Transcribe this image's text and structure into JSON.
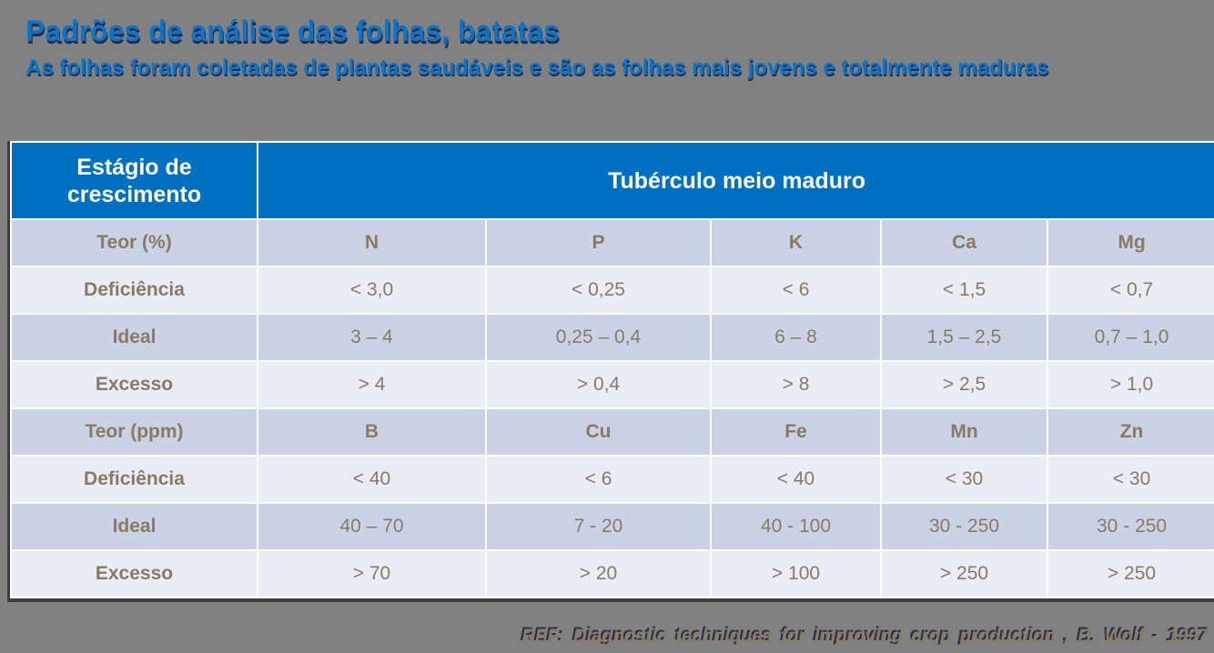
{
  "slide": {
    "title": "Padrões de análise das folhas, batatas",
    "subtitle": "As folhas foram coletadas de plantas saudáveis e são as folhas mais jovens e totalmente maduras",
    "footer": "REF: Diagnostic techniques for improving crop production , B. Wolf - 1997"
  },
  "table": {
    "corner_header": "Estágio de crescimento",
    "span_header": "Tubérculo meio maduro",
    "rows": [
      {
        "label": "Teor (%)",
        "values": [
          "N",
          "P",
          "K",
          "Ca",
          "Mg"
        ]
      },
      {
        "label": "Deficiência",
        "values": [
          "< 3,0",
          "< 0,25",
          "< 6",
          "< 1,5",
          "< 0,7"
        ]
      },
      {
        "label": "Ideal",
        "values": [
          "3 – 4",
          "0,25 – 0,4",
          "6 – 8",
          "1,5 – 2,5",
          "0,7 – 1,0"
        ]
      },
      {
        "label": "Excesso",
        "values": [
          "> 4",
          "> 0,4",
          "> 8",
          "> 2,5",
          "> 1,0"
        ]
      },
      {
        "label": "Teor (ppm)",
        "values": [
          "B",
          "Cu",
          "Fe",
          "Mn",
          "Zn"
        ]
      },
      {
        "label": "Deficiência",
        "values": [
          "< 40",
          "< 6",
          "< 40",
          "< 30",
          "< 30"
        ]
      },
      {
        "label": "Ideal",
        "values": [
          "40 – 70",
          "7 - 20",
          "40 - 100",
          "30 - 250",
          "30 - 250"
        ]
      },
      {
        "label": "Excesso",
        "values": [
          "> 70",
          "> 20",
          "> 100",
          "> 250",
          "> 250"
        ]
      }
    ]
  },
  "colors": {
    "bg_gray": "#818181",
    "title_blue": "#0C74C8",
    "title_shadow": "#1E2C4D",
    "header_blue": "#0070C0",
    "row_dark": "#C9D3E5",
    "row_light": "#E9EDF5",
    "cell_text": "#8A7A64",
    "grid_white": "#FFFFFF",
    "table_border_dark": "#3D3D3D",
    "footer_tan": "#8B7B5F",
    "footer_shadow": "#283250"
  }
}
